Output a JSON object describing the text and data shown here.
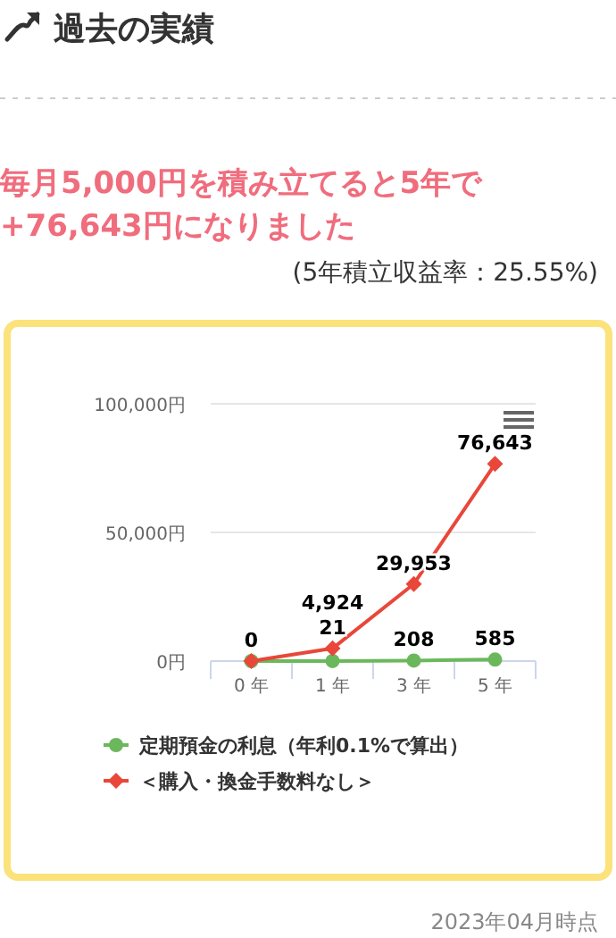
{
  "chart_data": {
    "type": "line",
    "title": "過去の実績",
    "subtitle": "毎月5,000円を積み立てると5年で+76,643円になりました",
    "annotations": [
      "(5年積立収益率：25.55%)",
      "2023年04月時点"
    ],
    "categories": [
      "0 年",
      "1 年",
      "3 年",
      "5 年"
    ],
    "series": [
      {
        "name": "定期預金の利息（年利0.1%で算出）",
        "color": "#6bb85c",
        "marker": "circle",
        "values": [
          0,
          21,
          208,
          585
        ],
        "value_labels": [
          "0",
          "21",
          "208",
          "585"
        ]
      },
      {
        "name": "＜購入・換金手数料なし＞",
        "color": "#e8473a",
        "marker": "diamond",
        "values": [
          0,
          4924,
          29953,
          76643
        ],
        "value_labels": [
          null,
          "4,924",
          "29,953",
          "76,643"
        ]
      }
    ],
    "ylim": [
      0,
      100000
    ],
    "yticks": [
      {
        "value": 0,
        "label": "0円"
      },
      {
        "value": 50000,
        "label": "50,000円"
      },
      {
        "value": 100000,
        "label": "100,000円"
      }
    ],
    "grid": "y",
    "legend": "bottom"
  }
}
